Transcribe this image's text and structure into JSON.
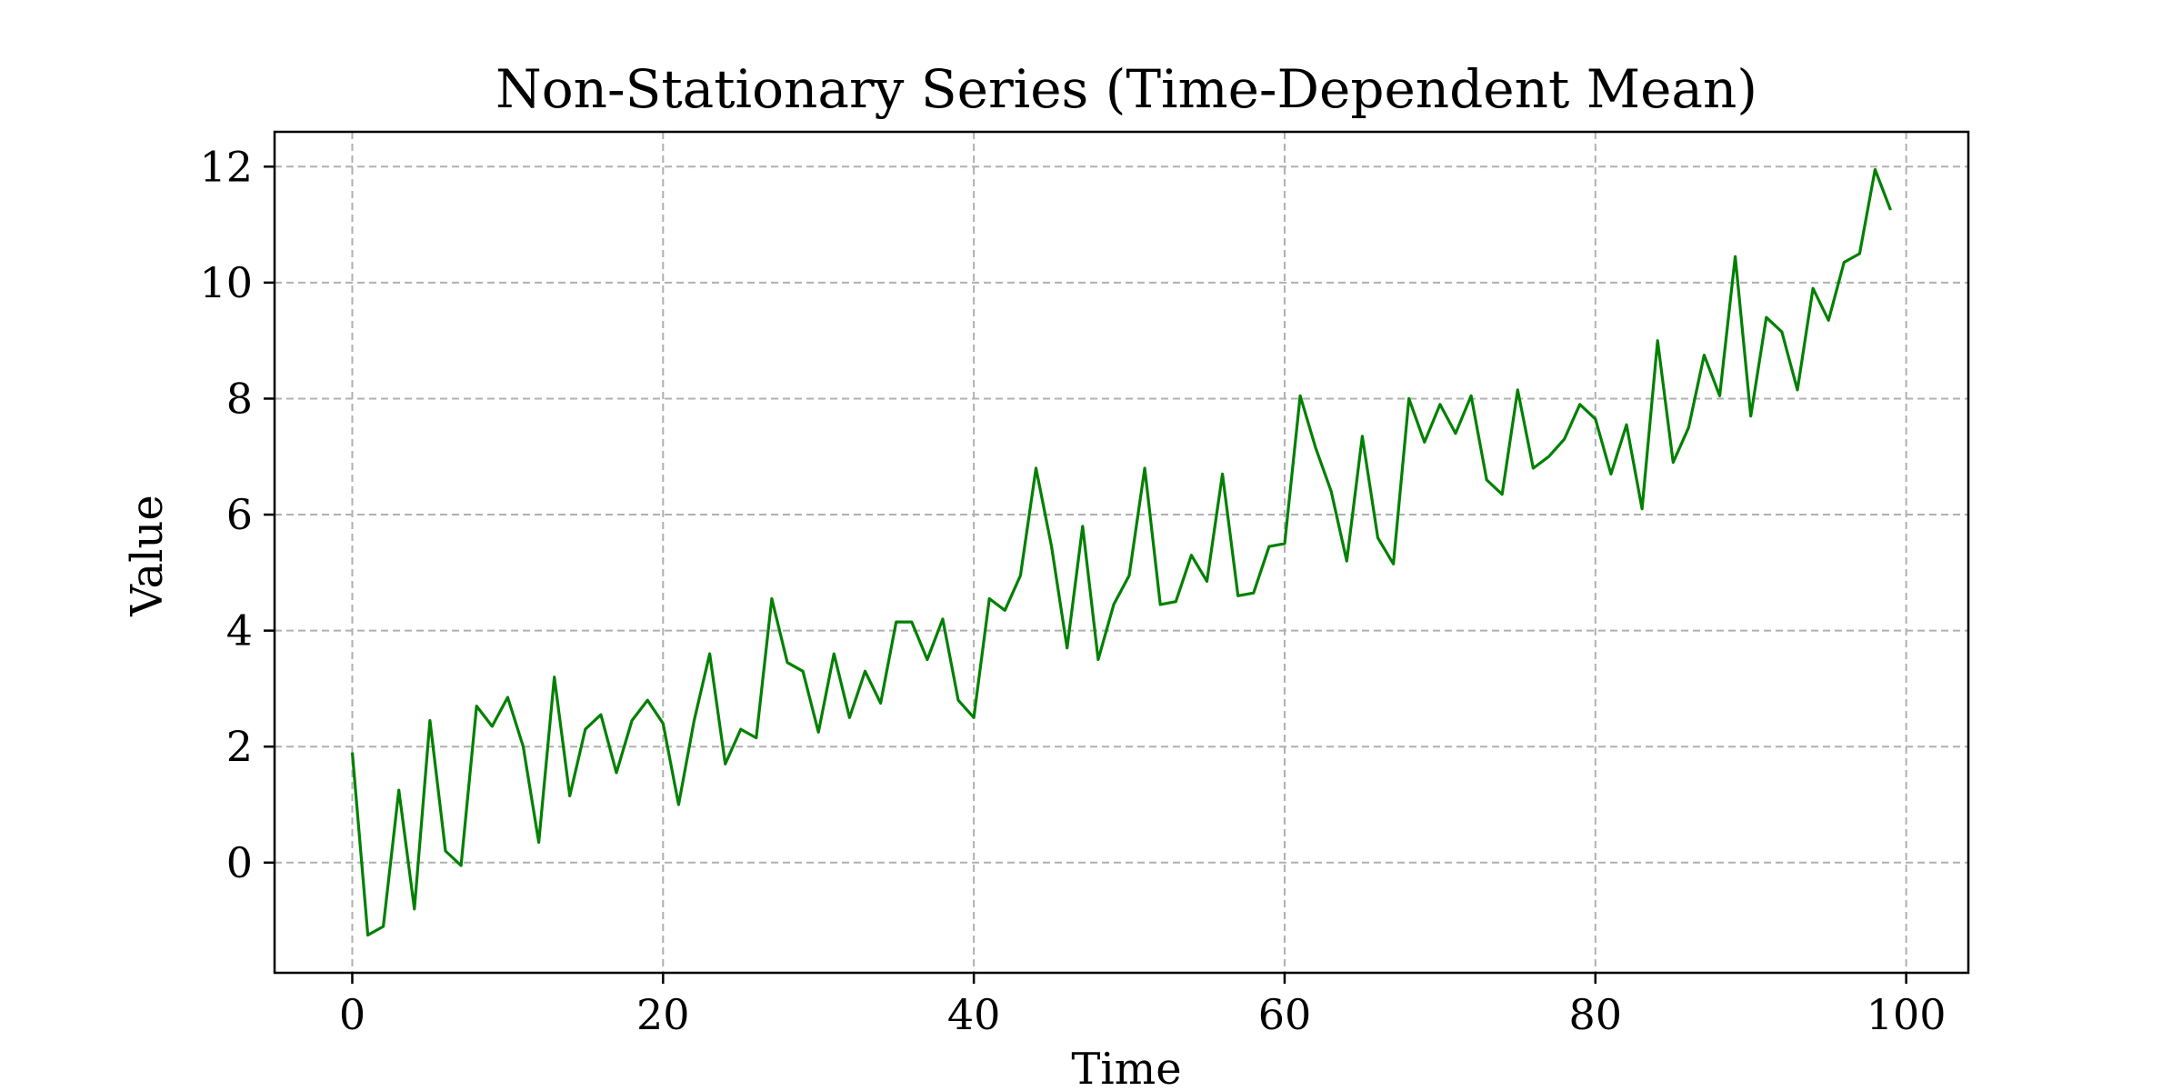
{
  "chart_data": {
    "type": "line",
    "title": "Non-Stationary Series (Time-Dependent Mean)",
    "xlabel": "Time",
    "ylabel": "Value",
    "xlim": [
      -5,
      104
    ],
    "ylim": [
      -1.9,
      12.6
    ],
    "xticks": [
      0,
      20,
      40,
      60,
      80,
      100
    ],
    "yticks": [
      0,
      2,
      4,
      6,
      8,
      10,
      12
    ],
    "grid": true,
    "line_color": "#008000",
    "series": [
      {
        "x": [
          0,
          1,
          2,
          3,
          4,
          5,
          6,
          7,
          8,
          9,
          10,
          11,
          12,
          13,
          14,
          15,
          16,
          17,
          18,
          19,
          20,
          21,
          22,
          23,
          24,
          25,
          26,
          27,
          28,
          29,
          30,
          31,
          32,
          33,
          34,
          35,
          36,
          37,
          38,
          39,
          40,
          41,
          42,
          43,
          44,
          45,
          46,
          47,
          48,
          49,
          50,
          51,
          52,
          53,
          54,
          55,
          56,
          57,
          58,
          59,
          60,
          61,
          62,
          63,
          64,
          65,
          66,
          67,
          68,
          69,
          70,
          71,
          72,
          73,
          74,
          75,
          76,
          77,
          78,
          79,
          80,
          81,
          82,
          83,
          84,
          85,
          86,
          87,
          88,
          89,
          90,
          91,
          92,
          93,
          94,
          95,
          96,
          97,
          98,
          99
        ],
        "values": [
          1.9,
          -1.25,
          -1.1,
          1.25,
          -0.8,
          2.45,
          0.2,
          -0.05,
          2.7,
          2.35,
          2.85,
          2.0,
          0.35,
          3.2,
          1.15,
          2.3,
          2.55,
          1.55,
          2.45,
          2.8,
          2.4,
          1.0,
          2.45,
          3.6,
          1.7,
          2.3,
          2.15,
          4.55,
          3.45,
          3.3,
          2.25,
          3.6,
          2.5,
          3.3,
          2.75,
          4.15,
          4.15,
          3.5,
          4.2,
          2.8,
          2.5,
          4.55,
          4.35,
          4.95,
          6.8,
          5.45,
          3.7,
          5.8,
          3.5,
          4.45,
          4.95,
          6.8,
          4.45,
          4.5,
          5.3,
          4.85,
          6.7,
          4.6,
          4.65,
          5.45,
          5.5,
          8.05,
          7.15,
          6.4,
          5.2,
          7.35,
          5.6,
          5.15,
          8.0,
          7.25,
          7.9,
          7.4,
          8.05,
          6.6,
          6.35,
          8.15,
          6.8,
          7.0,
          7.3,
          7.9,
          7.65,
          6.7,
          7.55,
          6.1,
          9.0,
          6.9,
          7.5,
          8.75,
          8.05,
          10.45,
          7.7,
          9.4,
          9.15,
          8.15,
          9.9,
          9.35,
          10.35,
          10.5,
          11.95,
          11.25
        ]
      }
    ]
  }
}
